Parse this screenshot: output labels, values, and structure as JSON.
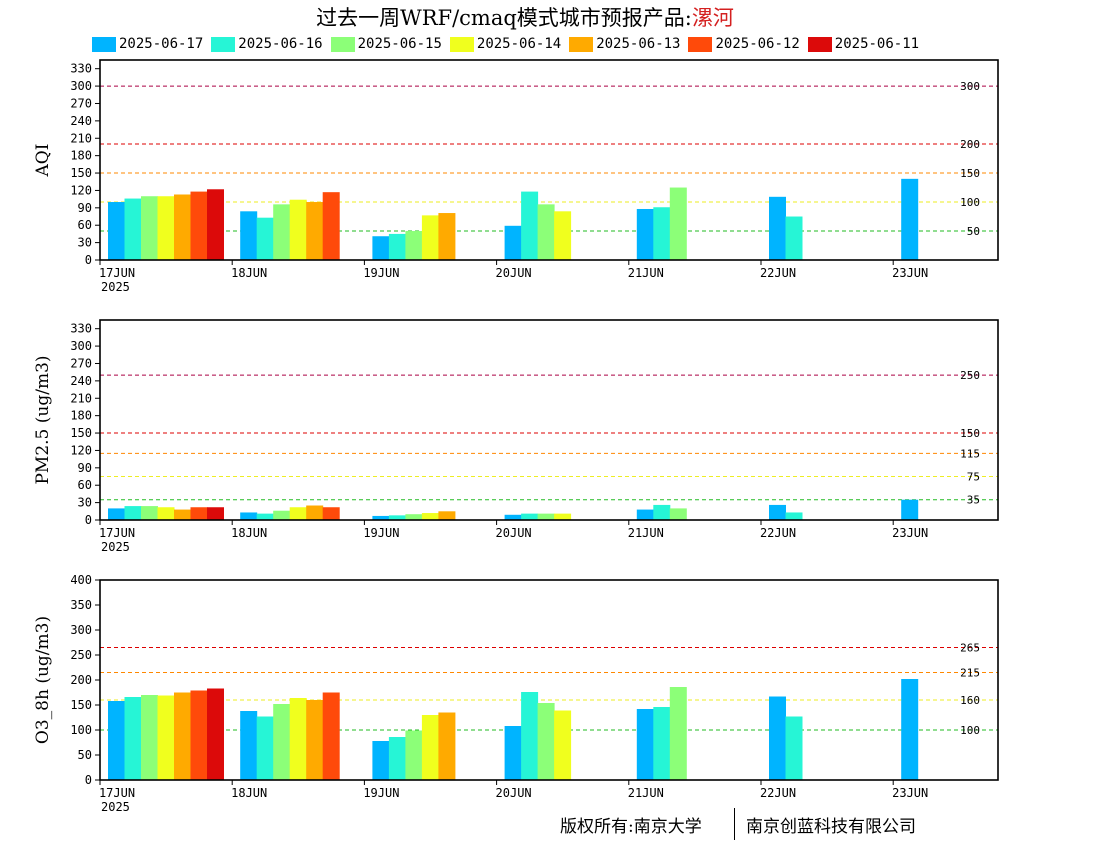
{
  "title": {
    "prefix": "过去一周WRF/cmaq模式城市预报产品:",
    "city": "漯河"
  },
  "legend": [
    {
      "label": "2025-06-17",
      "color": "#00b4ff"
    },
    {
      "label": "2025-06-16",
      "color": "#26f5d6"
    },
    {
      "label": "2025-06-15",
      "color": "#8cff78"
    },
    {
      "label": "2025-06-14",
      "color": "#f0ff1e"
    },
    {
      "label": "2025-06-13",
      "color": "#ffaa00"
    },
    {
      "label": "2025-06-12",
      "color": "#ff4a0a"
    },
    {
      "label": "2025-06-11",
      "color": "#dc0a0a"
    }
  ],
  "chart_data": [
    {
      "type": "bar",
      "ylabel": "AQI",
      "ylim": [
        0,
        345
      ],
      "yticks": [
        0,
        30,
        60,
        90,
        120,
        150,
        180,
        210,
        240,
        270,
        300,
        330
      ],
      "categories": [
        "17JUN",
        "18JUN",
        "19JUN",
        "20JUN",
        "21JUN",
        "22JUN",
        "23JUN"
      ],
      "first_category_year": "2025",
      "threshold_lines": [
        {
          "value": 50,
          "label": "50",
          "color": "#22bb22"
        },
        {
          "value": 100,
          "label": "100",
          "color": "#eeee22"
        },
        {
          "value": 150,
          "label": "150",
          "color": "#ff8800"
        },
        {
          "value": 200,
          "label": "200",
          "color": "#dd0000"
        },
        {
          "value": 300,
          "label": "300",
          "color": "#aa0044"
        }
      ],
      "series": [
        {
          "name": "2025-06-17",
          "values": [
            100,
            84,
            41,
            59,
            88,
            109,
            140
          ]
        },
        {
          "name": "2025-06-16",
          "values": [
            106,
            73,
            45,
            118,
            91,
            75,
            null
          ]
        },
        {
          "name": "2025-06-15",
          "values": [
            110,
            96,
            50,
            96,
            125,
            null,
            null
          ]
        },
        {
          "name": "2025-06-14",
          "values": [
            110,
            104,
            77,
            84,
            null,
            null,
            null
          ]
        },
        {
          "name": "2025-06-13",
          "values": [
            113,
            100,
            81,
            null,
            null,
            null,
            null
          ]
        },
        {
          "name": "2025-06-12",
          "values": [
            118,
            117,
            null,
            null,
            null,
            null,
            null
          ]
        },
        {
          "name": "2025-06-11",
          "values": [
            122,
            null,
            null,
            null,
            null,
            null,
            null
          ]
        }
      ]
    },
    {
      "type": "bar",
      "ylabel": "PM2.5 (ug/m3)",
      "ylim": [
        0,
        345
      ],
      "yticks": [
        0,
        30,
        60,
        90,
        120,
        150,
        180,
        210,
        240,
        270,
        300,
        330
      ],
      "categories": [
        "17JUN",
        "18JUN",
        "19JUN",
        "20JUN",
        "21JUN",
        "22JUN",
        "23JUN"
      ],
      "first_category_year": "2025",
      "threshold_lines": [
        {
          "value": 35,
          "label": "35",
          "color": "#22bb22"
        },
        {
          "value": 75,
          "label": "75",
          "color": "#eeee22"
        },
        {
          "value": 115,
          "label": "115",
          "color": "#ff8800"
        },
        {
          "value": 150,
          "label": "150",
          "color": "#dd0000"
        },
        {
          "value": 250,
          "label": "250",
          "color": "#aa0044"
        }
      ],
      "series": [
        {
          "name": "2025-06-17",
          "values": [
            20,
            13,
            7,
            9,
            18,
            26,
            35
          ]
        },
        {
          "name": "2025-06-16",
          "values": [
            24,
            11,
            8,
            11,
            26,
            13,
            null
          ]
        },
        {
          "name": "2025-06-15",
          "values": [
            24,
            16,
            10,
            11,
            20,
            null,
            null
          ]
        },
        {
          "name": "2025-06-14",
          "values": [
            22,
            22,
            12,
            11,
            null,
            null,
            null
          ]
        },
        {
          "name": "2025-06-13",
          "values": [
            18,
            25,
            15,
            null,
            null,
            null,
            null
          ]
        },
        {
          "name": "2025-06-12",
          "values": [
            22,
            22,
            null,
            null,
            null,
            null,
            null
          ]
        },
        {
          "name": "2025-06-11",
          "values": [
            22,
            null,
            null,
            null,
            null,
            null,
            null
          ]
        }
      ]
    },
    {
      "type": "bar",
      "ylabel": "O3_8h (ug/m3)",
      "ylim": [
        0,
        400
      ],
      "yticks": [
        0,
        50,
        100,
        150,
        200,
        250,
        300,
        350,
        400
      ],
      "categories": [
        "17JUN",
        "18JUN",
        "19JUN",
        "20JUN",
        "21JUN",
        "22JUN",
        "23JUN"
      ],
      "first_category_year": "2025",
      "threshold_lines": [
        {
          "value": 100,
          "label": "100",
          "color": "#22bb22"
        },
        {
          "value": 160,
          "label": "160",
          "color": "#eeee22"
        },
        {
          "value": 215,
          "label": "215",
          "color": "#ff8800"
        },
        {
          "value": 265,
          "label": "265",
          "color": "#dd0000"
        }
      ],
      "series": [
        {
          "name": "2025-06-17",
          "values": [
            158,
            138,
            78,
            108,
            142,
            167,
            202
          ]
        },
        {
          "name": "2025-06-16",
          "values": [
            166,
            127,
            86,
            176,
            146,
            127,
            null
          ]
        },
        {
          "name": "2025-06-15",
          "values": [
            170,
            152,
            99,
            154,
            186,
            null,
            null
          ]
        },
        {
          "name": "2025-06-14",
          "values": [
            169,
            164,
            130,
            139,
            null,
            null,
            null
          ]
        },
        {
          "name": "2025-06-13",
          "values": [
            175,
            160,
            135,
            null,
            null,
            null,
            null
          ]
        },
        {
          "name": "2025-06-12",
          "values": [
            179,
            175,
            null,
            null,
            null,
            null,
            null
          ]
        },
        {
          "name": "2025-06-11",
          "values": [
            183,
            null,
            null,
            null,
            null,
            null,
            null
          ]
        }
      ]
    }
  ],
  "footer": {
    "left": "版权所有:南京大学",
    "right": "南京创蓝科技有限公司"
  }
}
